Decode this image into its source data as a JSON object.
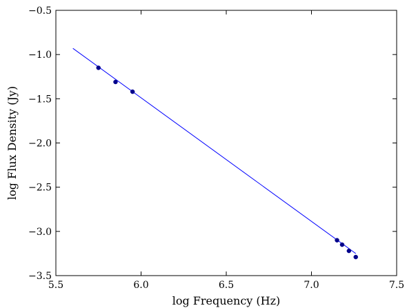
{
  "chart_data": {
    "type": "scatter",
    "xlabel": "log Frequency (Hz)",
    "ylabel": "log Flux Density (Jy)",
    "xlim": [
      5.5,
      7.5
    ],
    "ylim": [
      -3.5,
      -0.5
    ],
    "x_ticks": [
      5.5,
      6.0,
      6.5,
      7.0,
      7.5
    ],
    "x_tick_labels": [
      "5.5",
      "6.0",
      "6.5",
      "7.0",
      "7.5"
    ],
    "y_ticks": [
      -0.5,
      -1.0,
      -1.5,
      -2.0,
      -2.5,
      -3.0,
      -3.5
    ],
    "y_tick_labels": [
      "−0.5",
      "−1.0",
      "−1.5",
      "−2.0",
      "−2.5",
      "−3.0",
      "−3.5"
    ],
    "grid": false,
    "series": [
      {
        "type": "scatter",
        "color": "#00008b",
        "points": [
          {
            "x": 5.75,
            "y": -1.15
          },
          {
            "x": 5.85,
            "y": -1.31
          },
          {
            "x": 5.95,
            "y": -1.42
          },
          {
            "x": 7.15,
            "y": -3.1
          },
          {
            "x": 7.18,
            "y": -3.15
          },
          {
            "x": 7.22,
            "y": -3.22
          },
          {
            "x": 7.26,
            "y": -3.29
          }
        ]
      },
      {
        "type": "line",
        "color": "#0000ff",
        "points": [
          {
            "x": 5.6,
            "y": -0.93
          },
          {
            "x": 7.26,
            "y": -3.25
          }
        ]
      }
    ]
  }
}
